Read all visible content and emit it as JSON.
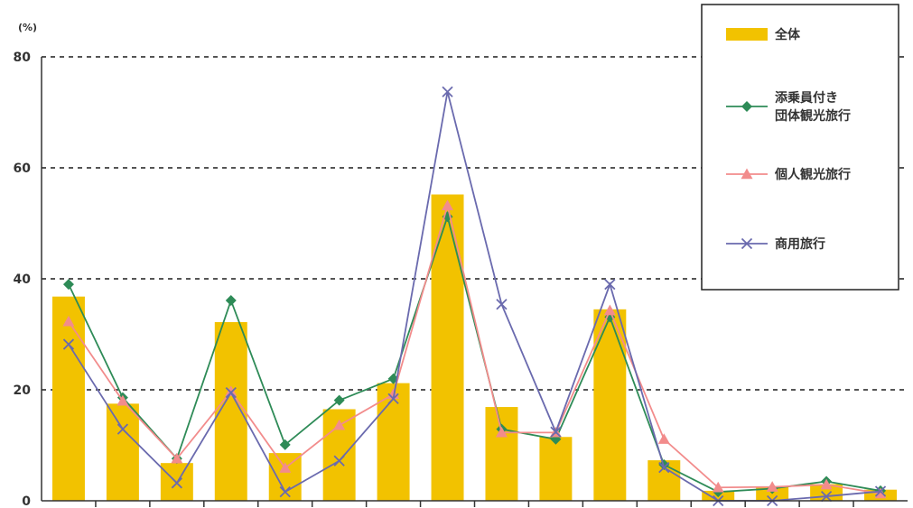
{
  "chart_data": {
    "type": "bar+line",
    "unit_label": "(%)",
    "ylim": [
      0,
      80
    ],
    "yticks": [
      0,
      20,
      40,
      60,
      80
    ],
    "grid": "dashed horizontal",
    "legend_position": "top-right",
    "categories": [
      "",
      "",
      "",
      "",
      "",
      "",
      "",
      "",
      "",
      "",
      "",
      "",
      "",
      "",
      "",
      ""
    ],
    "series": [
      {
        "name": "全体",
        "type": "bar",
        "color": "#F2C200",
        "values": [
          36.8,
          17.5,
          6.8,
          32.2,
          8.6,
          16.5,
          21.2,
          55.2,
          16.9,
          11.5,
          34.5,
          7.3,
          1.8,
          2.6,
          3.0,
          2.0
        ]
      },
      {
        "name": "添乗員付き\n団体観光旅行",
        "type": "line",
        "marker": "diamond",
        "color": "#2E8B57",
        "values": [
          39.0,
          18.6,
          7.6,
          36.1,
          10.1,
          18.1,
          22.0,
          51.2,
          12.9,
          11.1,
          33.1,
          6.5,
          1.6,
          2.2,
          3.5,
          1.8
        ]
      },
      {
        "name": "個人観光旅行",
        "type": "line",
        "marker": "triangle",
        "color": "#F28C8C",
        "values": [
          32.3,
          18.0,
          7.6,
          19.7,
          5.9,
          13.6,
          19.2,
          53.2,
          12.3,
          12.3,
          34.3,
          11.1,
          2.4,
          2.5,
          2.9,
          1.3
        ]
      },
      {
        "name": "商用旅行",
        "type": "line",
        "marker": "x",
        "color": "#6A6AAE",
        "values": [
          28.2,
          12.9,
          3.2,
          19.5,
          1.6,
          7.2,
          18.4,
          73.7,
          35.4,
          12.4,
          39.0,
          6.0,
          0.0,
          0.0,
          0.8,
          1.7
        ]
      }
    ]
  }
}
